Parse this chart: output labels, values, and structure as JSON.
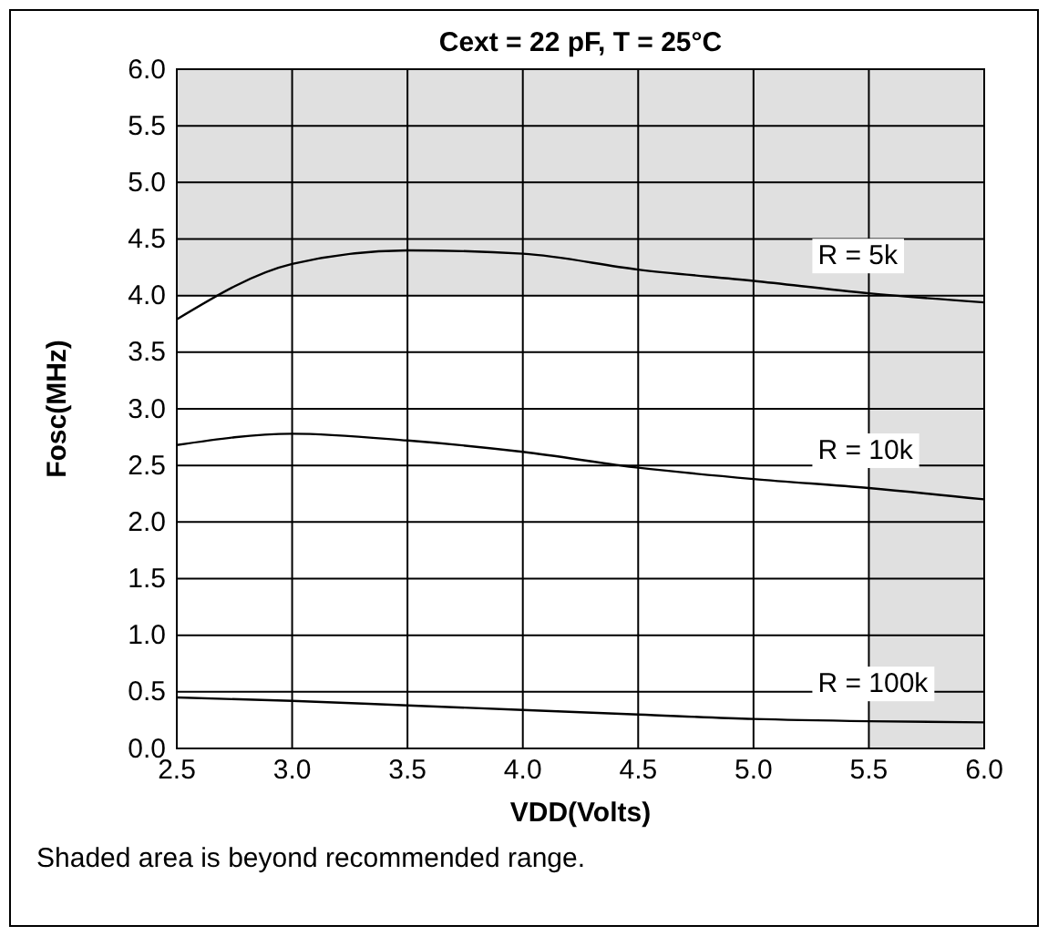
{
  "chart_data": {
    "type": "line",
    "title": "Cext = 22 pF, T = 25°C",
    "xlabel": "VDD(Volts)",
    "ylabel": "Fosc(MHz)",
    "x": [
      2.5,
      3.0,
      3.5,
      4.0,
      4.5,
      5.0,
      5.5,
      6.0
    ],
    "series": [
      {
        "name": "R = 5k",
        "color": "#000000",
        "values": [
          3.79,
          4.28,
          4.4,
          4.37,
          4.23,
          4.13,
          4.02,
          3.94
        ]
      },
      {
        "name": "R = 10k",
        "color": "#000000",
        "values": [
          2.68,
          2.78,
          2.72,
          2.62,
          2.48,
          2.38,
          2.3,
          2.2
        ]
      },
      {
        "name": "R = 100k",
        "color": "#000000",
        "values": [
          0.45,
          0.42,
          0.38,
          0.34,
          0.3,
          0.26,
          0.24,
          0.23
        ]
      }
    ],
    "xlim": [
      2.5,
      6.0
    ],
    "xticks": [
      {
        "value": 2.5,
        "label": "2.5"
      },
      {
        "value": 3,
        "label": "3.0"
      },
      {
        "value": 3.5,
        "label": "3.5"
      },
      {
        "value": 4,
        "label": "4.0"
      },
      {
        "value": 4.5,
        "label": "4.5"
      },
      {
        "value": 5,
        "label": "5.0"
      },
      {
        "value": 5.5,
        "label": "5.5"
      },
      {
        "value": 6,
        "label": "6.0"
      }
    ],
    "ylim": [
      0,
      6.0
    ],
    "yticks": [
      {
        "value": 0,
        "label": "0.0"
      },
      {
        "value": 0.5,
        "label": "0.5"
      },
      {
        "value": 1,
        "label": "1.0"
      },
      {
        "value": 1.5,
        "label": "1.5"
      },
      {
        "value": 2,
        "label": "2.0"
      },
      {
        "value": 2.5,
        "label": "2.5"
      },
      {
        "value": 3,
        "label": "3.0"
      },
      {
        "value": 3.5,
        "label": "3.5"
      },
      {
        "value": 4,
        "label": "4.0"
      },
      {
        "value": 4.5,
        "label": "4.5"
      },
      {
        "value": 5,
        "label": "5.0"
      },
      {
        "value": 5.5,
        "label": "5.5"
      },
      {
        "value": 6,
        "label": "6.0"
      }
    ],
    "bands": [
      {
        "axis": "y",
        "from": 4.0,
        "to": 6.0,
        "color": "#e0e0e0"
      },
      {
        "axis": "x",
        "from": 5.5,
        "to": 6.0,
        "color": "#e0e0e0"
      }
    ],
    "grid": true,
    "legend": false,
    "marker": "none",
    "line_style": "solid",
    "annotations": [
      "Shaded area is beyond recommended range."
    ]
  }
}
